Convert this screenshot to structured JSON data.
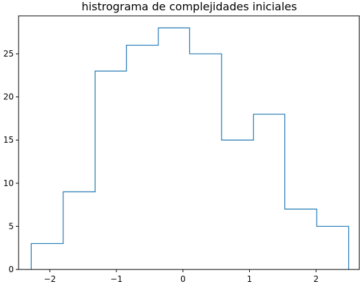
{
  "chart_data": {
    "type": "histogram",
    "title": "histrograma de complejidades iniciales",
    "xlabel": "",
    "ylabel": "",
    "xlim": [
      -2.47,
      2.65
    ],
    "ylim": [
      0,
      29.4
    ],
    "bin_edges": [
      -2.28,
      -1.8,
      -1.32,
      -0.85,
      -0.37,
      0.1,
      0.58,
      1.06,
      1.53,
      2.01,
      2.49
    ],
    "counts": [
      3,
      9,
      23,
      26,
      28,
      25,
      15,
      18,
      7,
      5
    ],
    "histtype": "step",
    "color": "#1f77b4",
    "x_ticks": [
      -2,
      -1,
      0,
      1,
      2
    ],
    "x_tick_labels": [
      "−2",
      "−1",
      "0",
      "1",
      "2"
    ],
    "y_ticks": [
      0,
      5,
      10,
      15,
      20,
      25
    ],
    "y_tick_labels": [
      "0",
      "5",
      "10",
      "15",
      "20",
      "25"
    ],
    "grid": false,
    "legend": "none"
  }
}
